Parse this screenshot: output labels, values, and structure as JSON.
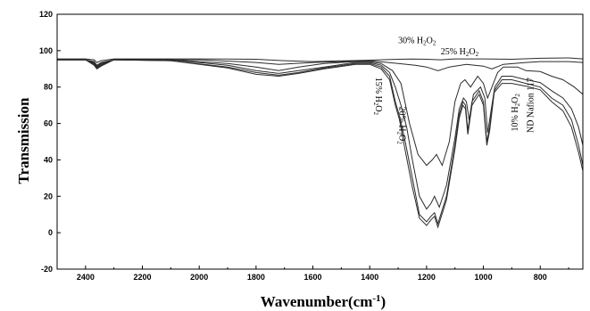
{
  "chart_data": {
    "type": "line",
    "xlabel": "Wavenumber(cm",
    "xlabel_sup": "-1",
    "xlabel_close": ")",
    "ylabel": "Transmission",
    "xlim": [
      2500,
      650
    ],
    "ylim": [
      -20,
      120
    ],
    "x_reversed": true,
    "grid": false,
    "x_ticks": [
      "2400",
      "2200",
      "2000",
      "1800",
      "1600",
      "1400",
      "1200",
      "1000",
      "800"
    ],
    "x_tick_values": [
      2400,
      2200,
      2000,
      1800,
      1600,
      1400,
      1200,
      1000,
      800
    ],
    "y_ticks": [
      "-20",
      "0",
      "20",
      "40",
      "60",
      "80",
      "100",
      "120"
    ],
    "y_tick_values": [
      -20,
      0,
      20,
      40,
      60,
      80,
      100,
      120
    ],
    "annotations": [
      {
        "id": "30",
        "parts": [
          "30% H",
          "2",
          "O",
          "2"
        ],
        "x": 1300,
        "y": 104,
        "rotate": 0
      },
      {
        "id": "25",
        "parts": [
          "25% H",
          "2",
          "O",
          "2"
        ],
        "x": 1150,
        "y": 98,
        "rotate": 0
      },
      {
        "id": "15",
        "parts": [
          "15% H",
          "2",
          "O",
          "2"
        ],
        "x": 1378,
        "y": 75,
        "rotate": 90
      },
      {
        "id": "20",
        "parts": [
          "20% H",
          "2",
          "O",
          "2"
        ],
        "x": 1295,
        "y": 59,
        "rotate": 90
      },
      {
        "id": "10",
        "parts": [
          "10% H",
          "2",
          "O",
          "2"
        ],
        "x": 880,
        "y": 66,
        "rotate": -90
      },
      {
        "id": "nd",
        "parts": [
          "ND Nafion 117"
        ],
        "x": 825,
        "y": 70,
        "rotate": -90
      }
    ],
    "series": [
      {
        "values": [
          [
            2500,
            95.5
          ],
          [
            2400,
            95.5
          ],
          [
            2370,
            95.0
          ],
          [
            2360,
            93.5
          ],
          [
            2345,
            94.5
          ],
          [
            2300,
            95.5
          ],
          [
            2000,
            95.5
          ],
          [
            1800,
            95.3
          ],
          [
            1700,
            94.5
          ],
          [
            1600,
            94.0
          ],
          [
            1400,
            94.8
          ],
          [
            1300,
            95.3
          ],
          [
            1250,
            95.4
          ],
          [
            1200,
            95.3
          ],
          [
            1150,
            95.0
          ],
          [
            1100,
            95.5
          ],
          [
            1000,
            95.5
          ],
          [
            900,
            95.3
          ],
          [
            800,
            95.8
          ],
          [
            700,
            96.0
          ],
          [
            650,
            95.5
          ]
        ]
      },
      {
        "values": [
          [
            2500,
            95.0
          ],
          [
            2400,
            95.0
          ],
          [
            2370,
            94.0
          ],
          [
            2360,
            92.0
          ],
          [
            2345,
            93.5
          ],
          [
            2300,
            95.0
          ],
          [
            2000,
            95.0
          ],
          [
            1800,
            93.5
          ],
          [
            1720,
            92.5
          ],
          [
            1600,
            93.5
          ],
          [
            1400,
            94.5
          ],
          [
            1300,
            93.0
          ],
          [
            1240,
            92.0
          ],
          [
            1200,
            91.0
          ],
          [
            1160,
            89.0
          ],
          [
            1120,
            91.0
          ],
          [
            1060,
            92.5
          ],
          [
            1000,
            91.5
          ],
          [
            970,
            90.0
          ],
          [
            930,
            92.5
          ],
          [
            850,
            93.5
          ],
          [
            800,
            94.0
          ],
          [
            700,
            94.0
          ],
          [
            650,
            93.5
          ]
        ]
      },
      {
        "values": [
          [
            2500,
            95.0
          ],
          [
            2400,
            95.0
          ],
          [
            2370,
            93.5
          ],
          [
            2360,
            91.5
          ],
          [
            2345,
            93.0
          ],
          [
            2300,
            95.0
          ],
          [
            2100,
            95.0
          ],
          [
            1900,
            93.0
          ],
          [
            1800,
            91.0
          ],
          [
            1720,
            89.0
          ],
          [
            1650,
            91.0
          ],
          [
            1560,
            93.0
          ],
          [
            1450,
            94.0
          ],
          [
            1400,
            94.0
          ],
          [
            1360,
            93.0
          ],
          [
            1320,
            89.0
          ],
          [
            1290,
            82.0
          ],
          [
            1260,
            60.0
          ],
          [
            1230,
            43.0
          ],
          [
            1200,
            37.0
          ],
          [
            1180,
            40.0
          ],
          [
            1165,
            43.0
          ],
          [
            1145,
            37.0
          ],
          [
            1120,
            50.0
          ],
          [
            1100,
            72.0
          ],
          [
            1080,
            82.0
          ],
          [
            1065,
            84.0
          ],
          [
            1045,
            80.0
          ],
          [
            1020,
            86.0
          ],
          [
            1000,
            82.0
          ],
          [
            985,
            74.0
          ],
          [
            970,
            80.0
          ],
          [
            950,
            88.0
          ],
          [
            930,
            91.0
          ],
          [
            880,
            91.0
          ],
          [
            850,
            89.0
          ],
          [
            800,
            88.5
          ],
          [
            760,
            86.0
          ],
          [
            720,
            84.0
          ],
          [
            680,
            80.0
          ],
          [
            650,
            76.0
          ]
        ]
      },
      {
        "values": [
          [
            2500,
            95.0
          ],
          [
            2400,
            95.0
          ],
          [
            2370,
            93.0
          ],
          [
            2360,
            91.0
          ],
          [
            2345,
            92.5
          ],
          [
            2300,
            95.0
          ],
          [
            2100,
            95.0
          ],
          [
            1900,
            92.0
          ],
          [
            1800,
            89.0
          ],
          [
            1720,
            87.5
          ],
          [
            1650,
            89.0
          ],
          [
            1560,
            91.0
          ],
          [
            1450,
            93.5
          ],
          [
            1400,
            93.5
          ],
          [
            1360,
            92.0
          ],
          [
            1330,
            88.0
          ],
          [
            1310,
            80.0
          ],
          [
            1290,
            70.0
          ],
          [
            1270,
            58.0
          ],
          [
            1250,
            40.0
          ],
          [
            1225,
            20.0
          ],
          [
            1200,
            13.0
          ],
          [
            1185,
            16.0
          ],
          [
            1172,
            20.0
          ],
          [
            1155,
            14.0
          ],
          [
            1130,
            26.0
          ],
          [
            1100,
            52.0
          ],
          [
            1085,
            68.0
          ],
          [
            1070,
            74.0
          ],
          [
            1060,
            72.0
          ],
          [
            1050,
            62.0
          ],
          [
            1035,
            76.0
          ],
          [
            1010,
            80.0
          ],
          [
            995,
            74.0
          ],
          [
            985,
            55.0
          ],
          [
            975,
            65.0
          ],
          [
            960,
            80.0
          ],
          [
            935,
            86.0
          ],
          [
            900,
            86.0
          ],
          [
            850,
            84.0
          ],
          [
            800,
            82.5
          ],
          [
            760,
            78.0
          ],
          [
            720,
            74.0
          ],
          [
            690,
            68.0
          ],
          [
            665,
            58.0
          ],
          [
            650,
            48.0
          ]
        ]
      },
      {
        "values": [
          [
            2500,
            95.0
          ],
          [
            2400,
            95.0
          ],
          [
            2370,
            92.5
          ],
          [
            2360,
            90.5
          ],
          [
            2345,
            92.0
          ],
          [
            2300,
            95.0
          ],
          [
            2100,
            94.5
          ],
          [
            1900,
            91.0
          ],
          [
            1800,
            88.0
          ],
          [
            1720,
            86.5
          ],
          [
            1650,
            88.0
          ],
          [
            1560,
            90.5
          ],
          [
            1450,
            93.0
          ],
          [
            1400,
            93.0
          ],
          [
            1360,
            91.0
          ],
          [
            1330,
            86.0
          ],
          [
            1310,
            72.0
          ],
          [
            1295,
            64.0
          ],
          [
            1275,
            50.0
          ],
          [
            1250,
            30.0
          ],
          [
            1225,
            10.0
          ],
          [
            1200,
            6.0
          ],
          [
            1185,
            9.0
          ],
          [
            1172,
            11.0
          ],
          [
            1160,
            5.0
          ],
          [
            1130,
            20.0
          ],
          [
            1100,
            48.0
          ],
          [
            1085,
            65.0
          ],
          [
            1072,
            72.0
          ],
          [
            1063,
            70.0
          ],
          [
            1055,
            56.0
          ],
          [
            1040,
            72.0
          ],
          [
            1015,
            78.0
          ],
          [
            1000,
            72.0
          ],
          [
            988,
            50.0
          ],
          [
            978,
            58.0
          ],
          [
            962,
            78.0
          ],
          [
            935,
            84.0
          ],
          [
            900,
            84.0
          ],
          [
            850,
            82.0
          ],
          [
            800,
            80.0
          ],
          [
            760,
            74.0
          ],
          [
            720,
            70.0
          ],
          [
            690,
            62.0
          ],
          [
            665,
            48.0
          ],
          [
            650,
            37.0
          ]
        ]
      },
      {
        "values": [
          [
            2500,
            95.0
          ],
          [
            2400,
            95.0
          ],
          [
            2370,
            92.0
          ],
          [
            2360,
            90.0
          ],
          [
            2345,
            91.5
          ],
          [
            2300,
            95.0
          ],
          [
            2100,
            94.5
          ],
          [
            1900,
            90.5
          ],
          [
            1800,
            87.0
          ],
          [
            1720,
            86.0
          ],
          [
            1650,
            87.5
          ],
          [
            1560,
            90.0
          ],
          [
            1450,
            92.5
          ],
          [
            1400,
            92.5
          ],
          [
            1360,
            90.0
          ],
          [
            1330,
            84.0
          ],
          [
            1310,
            70.0
          ],
          [
            1295,
            62.0
          ],
          [
            1275,
            45.0
          ],
          [
            1250,
            25.0
          ],
          [
            1225,
            8.0
          ],
          [
            1200,
            4.0
          ],
          [
            1185,
            7.0
          ],
          [
            1172,
            9.0
          ],
          [
            1160,
            3.0
          ],
          [
            1130,
            18.0
          ],
          [
            1100,
            46.0
          ],
          [
            1085,
            63.0
          ],
          [
            1072,
            70.0
          ],
          [
            1063,
            68.0
          ],
          [
            1055,
            54.0
          ],
          [
            1040,
            70.0
          ],
          [
            1015,
            76.0
          ],
          [
            1000,
            70.0
          ],
          [
            988,
            48.0
          ],
          [
            978,
            56.0
          ],
          [
            962,
            77.0
          ],
          [
            935,
            82.0
          ],
          [
            900,
            82.0
          ],
          [
            850,
            80.5
          ],
          [
            800,
            78.5
          ],
          [
            760,
            72.0
          ],
          [
            720,
            67.0
          ],
          [
            690,
            58.0
          ],
          [
            665,
            44.0
          ],
          [
            650,
            34.0
          ]
        ]
      }
    ]
  }
}
